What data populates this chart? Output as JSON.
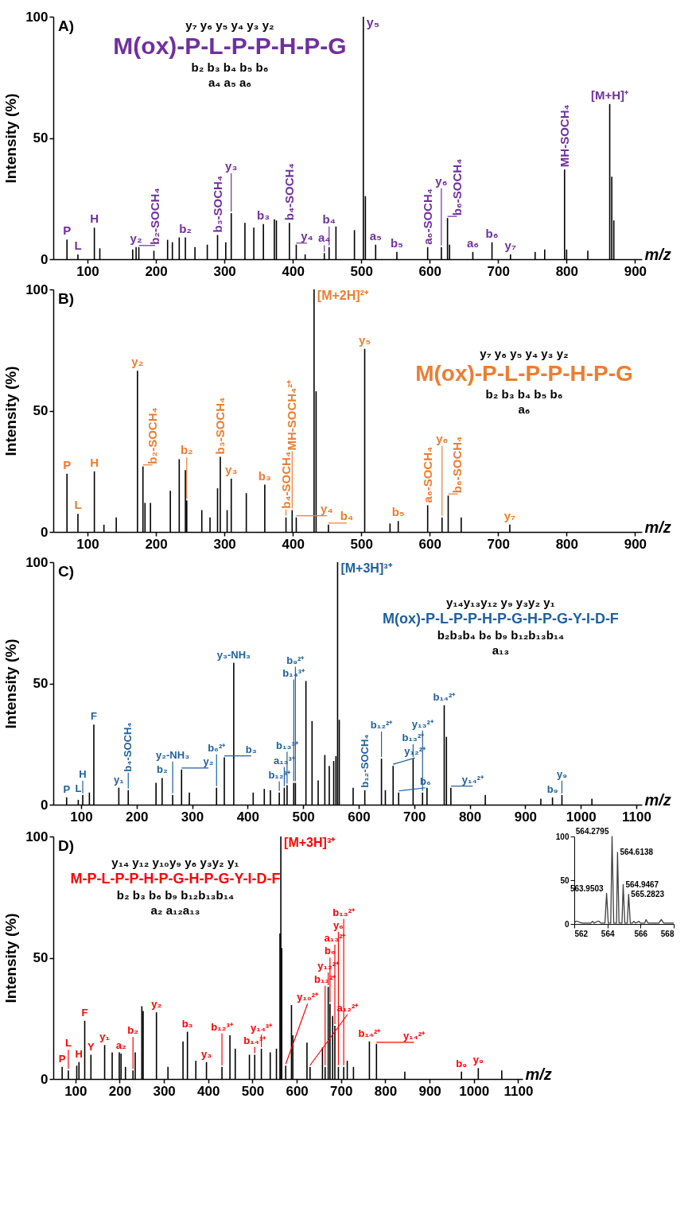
{
  "chart_data": [
    {
      "type": "bar",
      "title": "A)",
      "xlabel": "m/z",
      "ylabel": "Intensity (%)",
      "xlim": [
        50,
        910
      ],
      "ylim": [
        0,
        100
      ],
      "xticks": [
        100,
        200,
        300,
        400,
        500,
        600,
        700,
        800,
        900
      ],
      "yticks": [
        0,
        50,
        100
      ],
      "x": [
        70,
        86,
        110,
        118,
        166,
        171,
        175,
        197,
        217,
        224,
        234,
        243,
        257,
        275,
        290,
        302,
        310,
        330,
        343,
        357,
        373,
        376,
        395,
        405,
        418,
        446,
        453,
        463,
        490,
        503,
        506,
        521,
        552,
        597,
        617,
        626,
        629,
        663,
        691,
        718,
        754,
        768,
        797,
        800,
        831,
        863,
        866,
        869
      ],
      "series": [
        {
          "color": "#000000",
          "values": [
            8.1,
            2,
            13,
            4.5,
            4,
            5,
            5,
            3.5,
            8,
            7,
            9,
            9,
            5,
            6,
            10,
            7,
            19,
            15,
            13,
            14.5,
            16.5,
            16,
            15,
            6,
            2,
            2.5,
            5,
            13.5,
            12,
            100,
            26,
            6,
            3,
            5,
            5,
            17,
            6,
            3,
            7,
            2,
            3,
            4,
            37,
            4,
            3.5,
            64,
            34,
            16
          ]
        }
      ],
      "annotations": [
        "y₇ y₆ y₅ y₄ y₃ y₂",
        "M(ox)-P-L-P-P-H-P-G",
        "b₂ b₃ b₄ b₅ b₆",
        "a₄ a₅ a₆",
        {
          "text": "P",
          "x": 70,
          "y": 8.1
        },
        {
          "text": "L",
          "x": 86,
          "y": 2
        },
        {
          "text": "H",
          "x": 110,
          "y": 13
        },
        {
          "text": "y₂",
          "x": 171,
          "y": 5
        },
        {
          "text": "b₂-SOCH₄",
          "x": 175,
          "y": 5
        },
        {
          "text": "b₂",
          "x": 243,
          "y": 9
        },
        {
          "text": "b₃-SOCH₄",
          "x": 290,
          "y": 10
        },
        {
          "text": "y₃",
          "x": 310,
          "y": 19
        },
        {
          "text": "b₃",
          "x": 357,
          "y": 14.5
        },
        {
          "text": "b₄-SOCH₄",
          "x": 395,
          "y": 15
        },
        {
          "text": "y₄",
          "x": 405,
          "y": 6
        },
        {
          "text": "a₄",
          "x": 446,
          "y": 2.5
        },
        {
          "text": "b₄",
          "x": 453,
          "y": 5
        },
        {
          "text": "y₅",
          "x": 503,
          "y": 100
        },
        {
          "text": "a₅",
          "x": 521,
          "y": 6
        },
        {
          "text": "b₅",
          "x": 552,
          "y": 3
        },
        {
          "text": "a₆-SOCH₄",
          "x": 597,
          "y": 5
        },
        {
          "text": "y₆",
          "x": 617,
          "y": 5
        },
        {
          "text": "b₆-SOCH₄",
          "x": 626,
          "y": 17
        },
        {
          "text": "a₆",
          "x": 663,
          "y": 3
        },
        {
          "text": "b₆",
          "x": 691,
          "y": 7
        },
        {
          "text": "y₇",
          "x": 718,
          "y": 2
        },
        {
          "text": "MH-SOCH₄",
          "x": 797,
          "y": 37
        },
        {
          "text": "[M+H]⁺",
          "x": 863,
          "y": 64
        }
      ]
    },
    {
      "type": "bar",
      "title": "B)",
      "xlabel": "m/z",
      "ylabel": "Intensity (%)",
      "xlim": [
        50,
        910
      ],
      "ylim": [
        0,
        100
      ],
      "xticks": [
        100,
        200,
        300,
        400,
        500,
        600,
        700,
        800,
        900
      ],
      "yticks": [
        0,
        50,
        100
      ],
      "x": [
        70,
        86,
        110,
        124,
        142,
        173,
        181,
        184,
        192,
        221,
        234,
        243,
        245,
        267,
        279,
        290,
        294,
        304,
        310,
        332,
        359,
        390,
        399,
        405,
        431,
        434,
        452,
        505,
        542,
        554,
        597,
        618,
        627,
        646,
        717
      ],
      "series": [
        {
          "color": "#000000",
          "values": [
            24,
            7.5,
            25,
            3,
            6,
            66.5,
            27,
            12,
            12,
            17,
            30,
            25.5,
            13,
            9,
            6,
            18,
            31,
            9,
            22,
            16,
            19.5,
            6,
            9,
            6,
            100,
            58,
            3,
            75.5,
            3.5,
            4.5,
            11,
            6,
            15,
            6,
            3
          ]
        }
      ],
      "annotations": [
        "y₇ y₆ y₅ y₄ y₃ y₂",
        "M(ox)-P-L-P-P-H-P-G",
        "b₂ b₃ b₄ b₅ b₆",
        "a₆",
        {
          "text": "P",
          "x": 70,
          "y": 24
        },
        {
          "text": "L",
          "x": 86,
          "y": 7.5
        },
        {
          "text": "H",
          "x": 110,
          "y": 25
        },
        {
          "text": "y₂",
          "x": 173,
          "y": 66.5
        },
        {
          "text": "b₂-SOCH₄",
          "x": 181,
          "y": 27
        },
        {
          "text": "b₂",
          "x": 245,
          "y": 13
        },
        {
          "text": "b₃-SOCH₄",
          "x": 294,
          "y": 31
        },
        {
          "text": "y₃",
          "x": 310,
          "y": 22
        },
        {
          "text": "b₃",
          "x": 359,
          "y": 19.5
        },
        {
          "text": "b₄-SOCH₄",
          "x": 390,
          "y": 6
        },
        {
          "text": "MH-SOCH₄²⁺",
          "x": 399,
          "y": 9
        },
        {
          "text": "y₄",
          "x": 405,
          "y": 6
        },
        {
          "text": "[M+2H]²⁺",
          "x": 431,
          "y": 100
        },
        {
          "text": "b₄",
          "x": 452,
          "y": 3
        },
        {
          "text": "y₅",
          "x": 505,
          "y": 75.5
        },
        {
          "text": "b₅",
          "x": 554,
          "y": 4.5
        },
        {
          "text": "a₆-SOCH₄",
          "x": 597,
          "y": 11
        },
        {
          "text": "y₆",
          "x": 618,
          "y": 6
        },
        {
          "text": "b₆-SOCH₄",
          "x": 627,
          "y": 15
        },
        {
          "text": "y₇",
          "x": 717,
          "y": 3
        }
      ]
    },
    {
      "type": "bar",
      "title": "C)",
      "xlabel": "m/z",
      "ylabel": "Intensity (%)",
      "xlim": [
        50,
        1110
      ],
      "ylim": [
        0,
        100
      ],
      "xticks": [
        100,
        200,
        300,
        400,
        500,
        600,
        700,
        800,
        900,
        1000,
        1100
      ],
      "yticks": [
        0,
        50,
        100
      ],
      "x": [
        74,
        95,
        103,
        115,
        123,
        168,
        185,
        235,
        246,
        265,
        281,
        295,
        344,
        358,
        375,
        410,
        430,
        441,
        457,
        466,
        471,
        483,
        486,
        505,
        516,
        527,
        539,
        547,
        555,
        559,
        562,
        565,
        590,
        611,
        641,
        648,
        662,
        672,
        698,
        715,
        723,
        754,
        758,
        766,
        828,
        928,
        949,
        966,
        1020
      ],
      "series": [
        {
          "color": "#000000",
          "values": [
            3,
            2,
            4,
            5,
            33,
            7,
            6,
            9,
            11,
            4,
            14.5,
            5,
            7,
            19.5,
            58.5,
            5,
            6.5,
            6,
            5,
            7,
            8,
            9,
            9,
            51,
            34.5,
            10,
            20.5,
            16,
            18,
            20,
            100,
            35,
            7,
            6,
            19,
            6,
            16,
            5,
            19,
            5,
            7,
            41,
            28,
            7,
            4,
            2.5,
            3,
            4,
            2.5
          ]
        }
      ],
      "annotations": [
        "y₁₄y₁₃y₁₂ y₉ y₃y₂ y₁",
        "M(ox)-P-L-P-P-H-P-G-H-P-G-Y-I-D-F",
        "b₂b₃b₄ b₆ b₉ b₁₂b₁₃b₁₄",
        "a₁₃",
        {
          "text": "P",
          "x": 74,
          "y": 3
        },
        {
          "text": "L",
          "x": 95,
          "y": 2
        },
        {
          "text": "H",
          "x": 103,
          "y": 4
        },
        {
          "text": "F",
          "x": 123,
          "y": 33
        },
        {
          "text": "y₁",
          "x": 168,
          "y": 7
        },
        {
          "text": "b₄-SOCH₄",
          "x": 185,
          "y": 6
        },
        {
          "text": "b₂",
          "x": 246,
          "y": 11
        },
        {
          "text": "y₂-NH₃",
          "x": 265,
          "y": 4
        },
        {
          "text": "y₂",
          "x": 281,
          "y": 14.5
        },
        {
          "text": "b₆²⁺",
          "x": 344,
          "y": 7
        },
        {
          "text": "b₃",
          "x": 358,
          "y": 19.5
        },
        {
          "text": "y₃-NH₃",
          "x": 375,
          "y": 58.5
        },
        {
          "text": "b₁₂³⁺",
          "x": 457,
          "y": 5
        },
        {
          "text": "a₁₃³⁺",
          "x": 466,
          "y": 7
        },
        {
          "text": "b₁₃³⁺",
          "x": 471,
          "y": 8
        },
        {
          "text": "b₁₄³⁺",
          "x": 483,
          "y": 9
        },
        {
          "text": "b₉²⁺",
          "x": 486,
          "y": 9
        },
        {
          "text": "[M+3H]³⁺",
          "x": 562,
          "y": 100
        },
        {
          "text": "b₁₂-SOCH₄",
          "x": 611,
          "y": 6
        },
        {
          "text": "b₁₂²⁺",
          "x": 641,
          "y": 19
        },
        {
          "text": "y₁₂²⁺",
          "x": 662,
          "y": 16
        },
        {
          "text": "b₆",
          "x": 672,
          "y": 5
        },
        {
          "text": "b₁₃²⁺",
          "x": 698,
          "y": 19
        },
        {
          "text": "y₁₃²⁺",
          "x": 715,
          "y": 5
        },
        {
          "text": "b₁₄²⁺",
          "x": 754,
          "y": 41
        },
        {
          "text": "y₁₄²⁺",
          "x": 766,
          "y": 7
        },
        {
          "text": "b₉",
          "x": 949,
          "y": 3
        },
        {
          "text": "y₉",
          "x": 966,
          "y": 4
        }
      ]
    },
    {
      "type": "bar",
      "title": "D)",
      "xlabel": "m/z",
      "ylabel": "Intensity (%)",
      "xlim": [
        50,
        1110
      ],
      "ylim": [
        0,
        100
      ],
      "xticks": [
        100,
        200,
        300,
        400,
        500,
        600,
        700,
        800,
        900,
        1000,
        1100
      ],
      "yticks": [
        0,
        50,
        100
      ],
      "x": [
        70,
        84,
        103,
        108,
        121,
        135,
        166,
        183,
        199,
        203,
        213,
        230,
        235,
        250,
        253,
        283,
        309,
        343,
        353,
        372,
        396,
        431,
        449,
        461,
        493,
        505,
        520,
        540,
        554,
        562,
        564,
        566,
        575,
        588,
        591,
        623,
        630,
        658,
        664,
        671,
        675,
        681,
        686,
        694,
        706,
        714,
        728,
        764,
        780,
        844,
        972,
        1010,
        1063
      ],
      "series": [
        {
          "color": "#000000",
          "values": [
            5,
            3.5,
            5.5,
            7,
            24,
            10,
            14,
            11,
            11,
            10.5,
            5,
            3.5,
            11,
            30,
            28,
            27.5,
            5,
            15.5,
            19.5,
            7.5,
            7,
            5,
            18,
            12.5,
            10,
            10,
            12.5,
            11,
            12.5,
            60,
            100,
            54,
            5.5,
            30.5,
            18,
            15,
            5,
            13,
            5,
            38,
            31,
            26,
            22,
            5,
            5,
            7.5,
            5,
            15.5,
            14.5,
            3,
            3,
            4.5,
            3.5
          ]
        }
      ],
      "annotations": [
        "y₁₄ y₁₂ y₁₀y₉ y₆ y₃y₂ y₁",
        "M-P-L-P-P-H-P-G-H-P-G-Y-I-D-F",
        "b₂ b₃ b₆ b₉ b₁₂b₁₃b₁₄",
        "a₂ a₁₂a₁₃",
        {
          "text": "P",
          "x": 70,
          "y": 5
        },
        {
          "text": "L",
          "x": 84,
          "y": 3.5
        },
        {
          "text": "H",
          "x": 108,
          "y": 7
        },
        {
          "text": "F",
          "x": 121,
          "y": 24
        },
        {
          "text": "Y",
          "x": 135,
          "y": 10
        },
        {
          "text": "y₁",
          "x": 166,
          "y": 14
        },
        {
          "text": "a₂",
          "x": 203,
          "y": 10.5
        },
        {
          "text": "b₂",
          "x": 230,
          "y": 3.5
        },
        {
          "text": "y₂",
          "x": 283,
          "y": 27.5
        },
        {
          "text": "b₃",
          "x": 353,
          "y": 19.5
        },
        {
          "text": "y₃",
          "x": 396,
          "y": 7
        },
        {
          "text": "b₁₂³⁺",
          "x": 431,
          "y": 5
        },
        {
          "text": "b₁₄³⁺",
          "x": 505,
          "y": 10
        },
        {
          "text": "y₁₄³⁺",
          "x": 520,
          "y": 12.5
        },
        {
          "text": "[M+3H]³⁺",
          "x": 564,
          "y": 100
        },
        {
          "text": "y₁₀²⁺",
          "x": 575,
          "y": 5.5
        },
        {
          "text": "a₁₂²⁺",
          "x": 630,
          "y": 5
        },
        {
          "text": "b₁₂²⁺",
          "x": 664,
          "y": 5
        },
        {
          "text": "y₁₂²⁺",
          "x": 671,
          "y": 38
        },
        {
          "text": "b₆",
          "x": 675,
          "y": 31
        },
        {
          "text": "a₁₃²⁺",
          "x": 686,
          "y": 22
        },
        {
          "text": "y₆",
          "x": 694,
          "y": 5
        },
        {
          "text": "b₁₃²⁺",
          "x": 706,
          "y": 5
        },
        {
          "text": "b₁₄²⁺",
          "x": 764,
          "y": 15.5
        },
        {
          "text": "y₁₄²⁺",
          "x": 780,
          "y": 14.5
        },
        {
          "text": "b₉",
          "x": 972,
          "y": 3
        },
        {
          "text": "y₉",
          "x": 1010,
          "y": 4.5
        }
      ]
    },
    {
      "type": "line",
      "xlim": [
        562,
        568
      ],
      "ylim": [
        0,
        100
      ],
      "xticks": [
        562,
        564,
        566,
        568
      ],
      "yticks": [
        0,
        50,
        100
      ],
      "x": [
        562,
        562.1,
        562.2,
        562.3,
        562.5,
        563.0,
        563.1,
        563.2,
        563.4,
        563.5,
        563.6,
        563.85,
        563.95,
        564.05,
        564.2,
        564.28,
        564.38,
        564.55,
        564.61,
        564.7,
        564.88,
        564.95,
        565.05,
        565.2,
        565.28,
        565.38,
        565.5,
        565.6,
        565.7,
        565.9,
        566.0,
        566.25,
        566.33,
        566.45,
        567.1,
        567.25,
        567.4,
        568
      ],
      "series": [
        {
          "color": "#404040",
          "values": [
            1,
            3,
            3,
            2,
            1,
            1,
            3,
            1,
            3,
            3,
            1,
            1,
            35,
            1,
            1,
            100,
            1,
            1,
            82,
            1,
            1,
            45,
            1,
            1,
            34,
            1,
            1,
            3,
            1,
            3,
            1,
            1,
            5,
            1,
            1,
            5,
            1,
            1
          ]
        }
      ],
      "annotations": [
        {
          "text": "563.9503",
          "x": 563.95,
          "y": 35
        },
        {
          "text": "564.2795",
          "x": 564.28,
          "y": 100
        },
        {
          "text": "564.6138",
          "x": 564.61,
          "y": 82
        },
        {
          "text": "564.9467",
          "x": 564.95,
          "y": 45
        },
        {
          "text": "565.2823",
          "x": 565.28,
          "y": 34
        }
      ]
    }
  ]
}
